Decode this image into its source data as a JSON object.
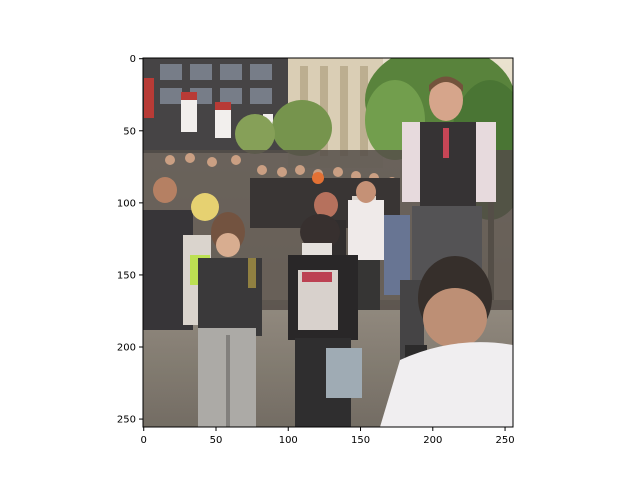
{
  "figure": {
    "image_description_tag": "crowd-photo",
    "image_size": [
      256,
      256
    ],
    "x_axis": {
      "ticks": [
        0,
        50,
        100,
        150,
        200,
        250
      ],
      "tick_labels": [
        "0",
        "50",
        "100",
        "150",
        "200",
        "250"
      ],
      "range": [
        -0.5,
        255.5
      ]
    },
    "y_axis": {
      "ticks": [
        0,
        50,
        100,
        150,
        200,
        250
      ],
      "tick_labels": [
        "0",
        "50",
        "100",
        "150",
        "200",
        "250"
      ],
      "range": [
        -0.5,
        255.5
      ],
      "inverted": true
    },
    "colors": {
      "frame": "#000000",
      "background": "#ffffff"
    }
  }
}
